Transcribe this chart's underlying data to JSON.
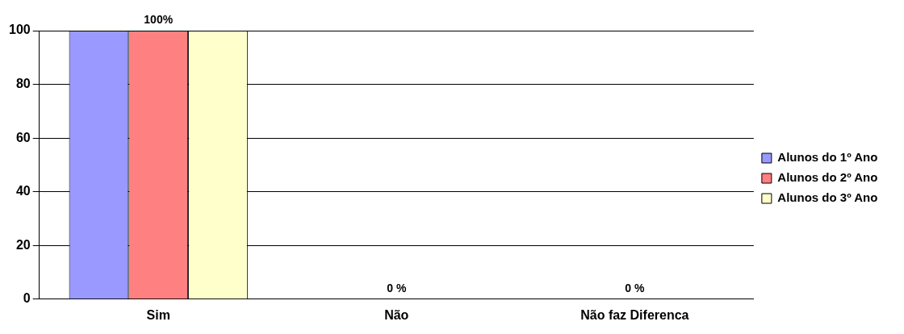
{
  "chart_data": {
    "type": "bar",
    "categories": [
      "Sim",
      "Não",
      "Não faz Diferenca"
    ],
    "series": [
      {
        "name": "Alunos do 1º Ano",
        "color": "#9999ff",
        "values": [
          100,
          0,
          0
        ]
      },
      {
        "name": "Alunos do 2º Ano",
        "color": "#ff8080",
        "values": [
          100,
          0,
          0
        ]
      },
      {
        "name": "Alunos do 3º Ano",
        "color": "#ffffcc",
        "values": [
          100,
          0,
          0
        ]
      }
    ],
    "ylim": [
      0,
      100
    ],
    "yticks": [
      0,
      20,
      40,
      60,
      80,
      100
    ],
    "grid": "y",
    "legend": "right",
    "annotations": [
      {
        "text": "100%",
        "x": "Sim",
        "y": 100
      },
      {
        "text": "0 %",
        "x": "Não",
        "y": 0
      },
      {
        "text": "0 %",
        "x": "Não faz Diferenca",
        "y": 0
      }
    ]
  }
}
